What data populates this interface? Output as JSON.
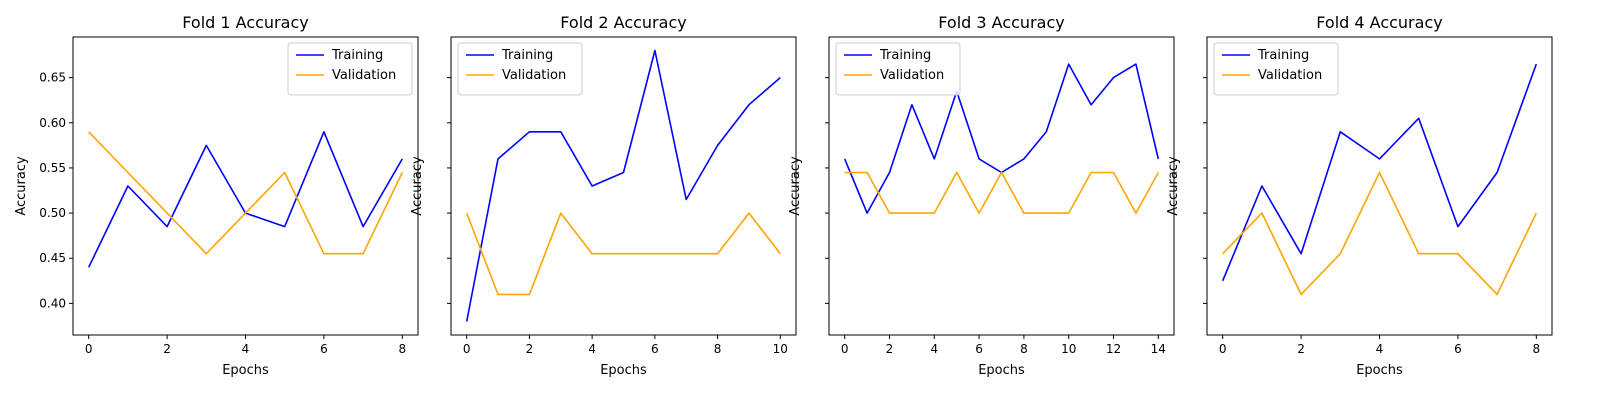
{
  "colors": {
    "training": "#0000ff",
    "validation": "#ffa500",
    "axes": "#000000",
    "background": "#ffffff"
  },
  "chart_data": [
    {
      "type": "line",
      "title": "Fold 1 Accuracy",
      "xlabel": "Epochs",
      "ylabel": "Accuracy",
      "x": [
        0,
        1,
        2,
        3,
        4,
        5,
        6,
        7,
        8
      ],
      "xticks": [
        0,
        2,
        4,
        6,
        8
      ],
      "xticklabels": [
        "0",
        "2",
        "4",
        "6",
        "8"
      ],
      "xlim": [
        -0.4,
        8.4
      ],
      "ylim": [
        0.365,
        0.695
      ],
      "yticks": [
        0.4,
        0.45,
        0.5,
        0.55,
        0.6,
        0.65
      ],
      "yticklabels": [
        "0.40",
        "0.45",
        "0.50",
        "0.55",
        "0.60",
        "0.65"
      ],
      "show_yticklabels": true,
      "legend_position": "top-right",
      "series": [
        {
          "name": "Training",
          "color": "#0000ff",
          "values": [
            0.44,
            0.53,
            0.485,
            0.575,
            0.5,
            0.485,
            0.59,
            0.485,
            0.56
          ]
        },
        {
          "name": "Validation",
          "color": "#ffa500",
          "values": [
            0.59,
            0.545,
            0.5,
            0.455,
            0.5,
            0.545,
            0.455,
            0.455,
            0.545
          ]
        }
      ]
    },
    {
      "type": "line",
      "title": "Fold 2 Accuracy",
      "xlabel": "Epochs",
      "ylabel": "Accuracy",
      "x": [
        0,
        1,
        2,
        3,
        4,
        5,
        6,
        7,
        8,
        9,
        10
      ],
      "xticks": [
        0,
        2,
        4,
        6,
        8,
        10
      ],
      "xticklabels": [
        "0",
        "2",
        "4",
        "6",
        "8",
        "10"
      ],
      "xlim": [
        -0.5,
        10.5
      ],
      "ylim": [
        0.365,
        0.695
      ],
      "yticks": [
        0.4,
        0.45,
        0.5,
        0.55,
        0.6,
        0.65
      ],
      "yticklabels": [
        "0.40",
        "0.45",
        "0.50",
        "0.55",
        "0.60",
        "0.65"
      ],
      "show_yticklabels": false,
      "legend_position": "top-left",
      "series": [
        {
          "name": "Training",
          "color": "#0000ff",
          "values": [
            0.38,
            0.56,
            0.59,
            0.59,
            0.53,
            0.545,
            0.68,
            0.515,
            0.575,
            0.62,
            0.65
          ]
        },
        {
          "name": "Validation",
          "color": "#ffa500",
          "values": [
            0.5,
            0.41,
            0.41,
            0.5,
            0.455,
            0.455,
            0.455,
            0.455,
            0.455,
            0.5,
            0.455
          ]
        }
      ]
    },
    {
      "type": "line",
      "title": "Fold 3 Accuracy",
      "xlabel": "Epochs",
      "ylabel": "Accuracy",
      "x": [
        0,
        1,
        2,
        3,
        4,
        5,
        6,
        7,
        8,
        9,
        10,
        11,
        12,
        13,
        14
      ],
      "xticks": [
        0,
        2,
        4,
        6,
        8,
        10,
        12,
        14
      ],
      "xticklabels": [
        "0",
        "2",
        "4",
        "6",
        "8",
        "10",
        "12",
        "14"
      ],
      "xlim": [
        -0.7,
        14.7
      ],
      "ylim": [
        0.365,
        0.695
      ],
      "yticks": [
        0.4,
        0.45,
        0.5,
        0.55,
        0.6,
        0.65
      ],
      "yticklabels": [
        "0.40",
        "0.45",
        "0.50",
        "0.55",
        "0.60",
        "0.65"
      ],
      "show_yticklabels": false,
      "legend_position": "top-left",
      "series": [
        {
          "name": "Training",
          "color": "#0000ff",
          "values": [
            0.56,
            0.5,
            0.545,
            0.62,
            0.56,
            0.635,
            0.56,
            0.545,
            0.56,
            0.59,
            0.665,
            0.62,
            0.65,
            0.665,
            0.56
          ]
        },
        {
          "name": "Validation",
          "color": "#ffa500",
          "values": [
            0.545,
            0.545,
            0.5,
            0.5,
            0.5,
            0.545,
            0.5,
            0.545,
            0.5,
            0.5,
            0.5,
            0.545,
            0.545,
            0.5,
            0.545
          ]
        }
      ]
    },
    {
      "type": "line",
      "title": "Fold 4 Accuracy",
      "xlabel": "Epochs",
      "ylabel": "Accuracy",
      "x": [
        0,
        1,
        2,
        3,
        4,
        5,
        6,
        7,
        8
      ],
      "xticks": [
        0,
        2,
        4,
        6,
        8
      ],
      "xticklabels": [
        "0",
        "2",
        "4",
        "6",
        "8"
      ],
      "xlim": [
        -0.4,
        8.4
      ],
      "ylim": [
        0.365,
        0.695
      ],
      "yticks": [
        0.4,
        0.45,
        0.5,
        0.55,
        0.6,
        0.65
      ],
      "yticklabels": [
        "0.40",
        "0.45",
        "0.50",
        "0.55",
        "0.60",
        "0.65"
      ],
      "show_yticklabels": false,
      "legend_position": "top-left",
      "series": [
        {
          "name": "Training",
          "color": "#0000ff",
          "values": [
            0.425,
            0.53,
            0.455,
            0.59,
            0.56,
            0.605,
            0.485,
            0.545,
            0.665
          ]
        },
        {
          "name": "Validation",
          "color": "#ffa500",
          "values": [
            0.455,
            0.5,
            0.41,
            0.455,
            0.545,
            0.455,
            0.455,
            0.41,
            0.5
          ]
        }
      ]
    }
  ]
}
